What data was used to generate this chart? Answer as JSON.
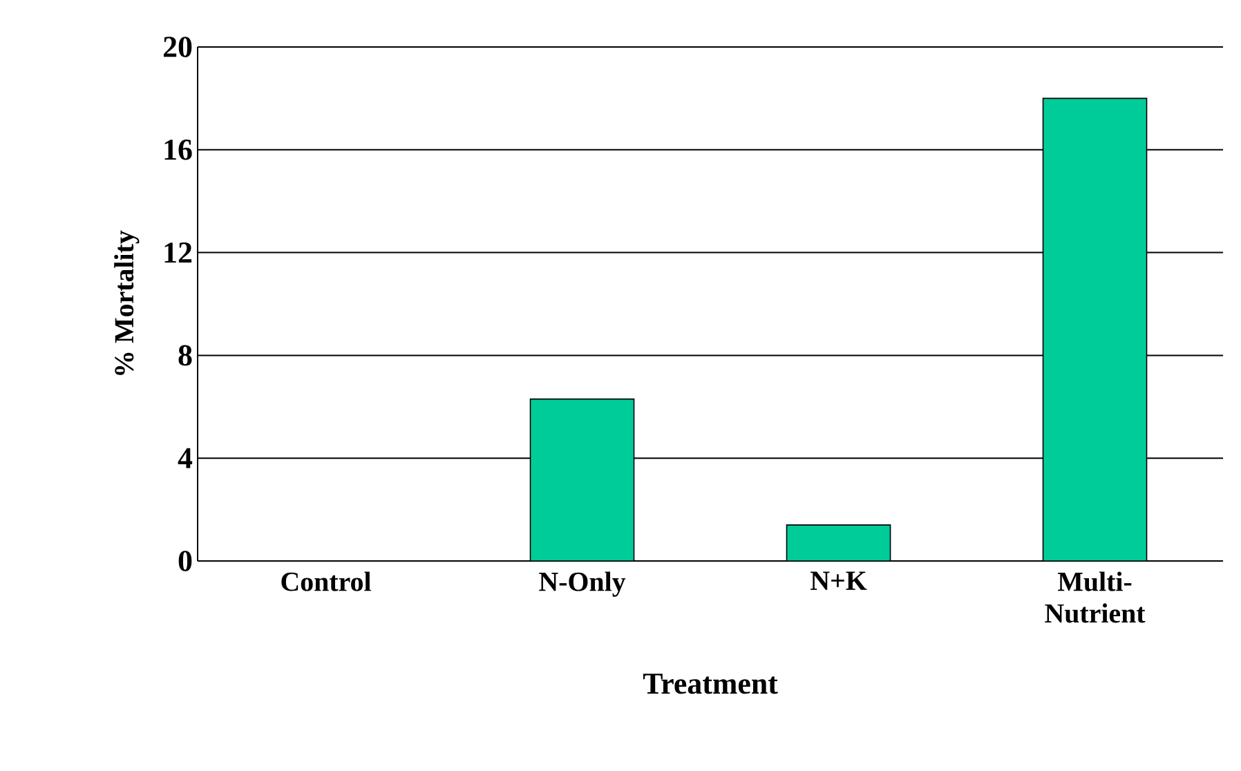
{
  "chart_data": {
    "type": "bar",
    "xlabel": "Treatment",
    "ylabel": "% Mortality",
    "categories": [
      "Control",
      "N-Only",
      "N+K",
      "Multi-Nutrient"
    ],
    "values": [
      0,
      6.3,
      1.4,
      18
    ],
    "color": "#00cc99",
    "ylim": [
      0,
      20
    ],
    "yticks": [
      0,
      4,
      8,
      12,
      16,
      20
    ],
    "grid": "y"
  }
}
